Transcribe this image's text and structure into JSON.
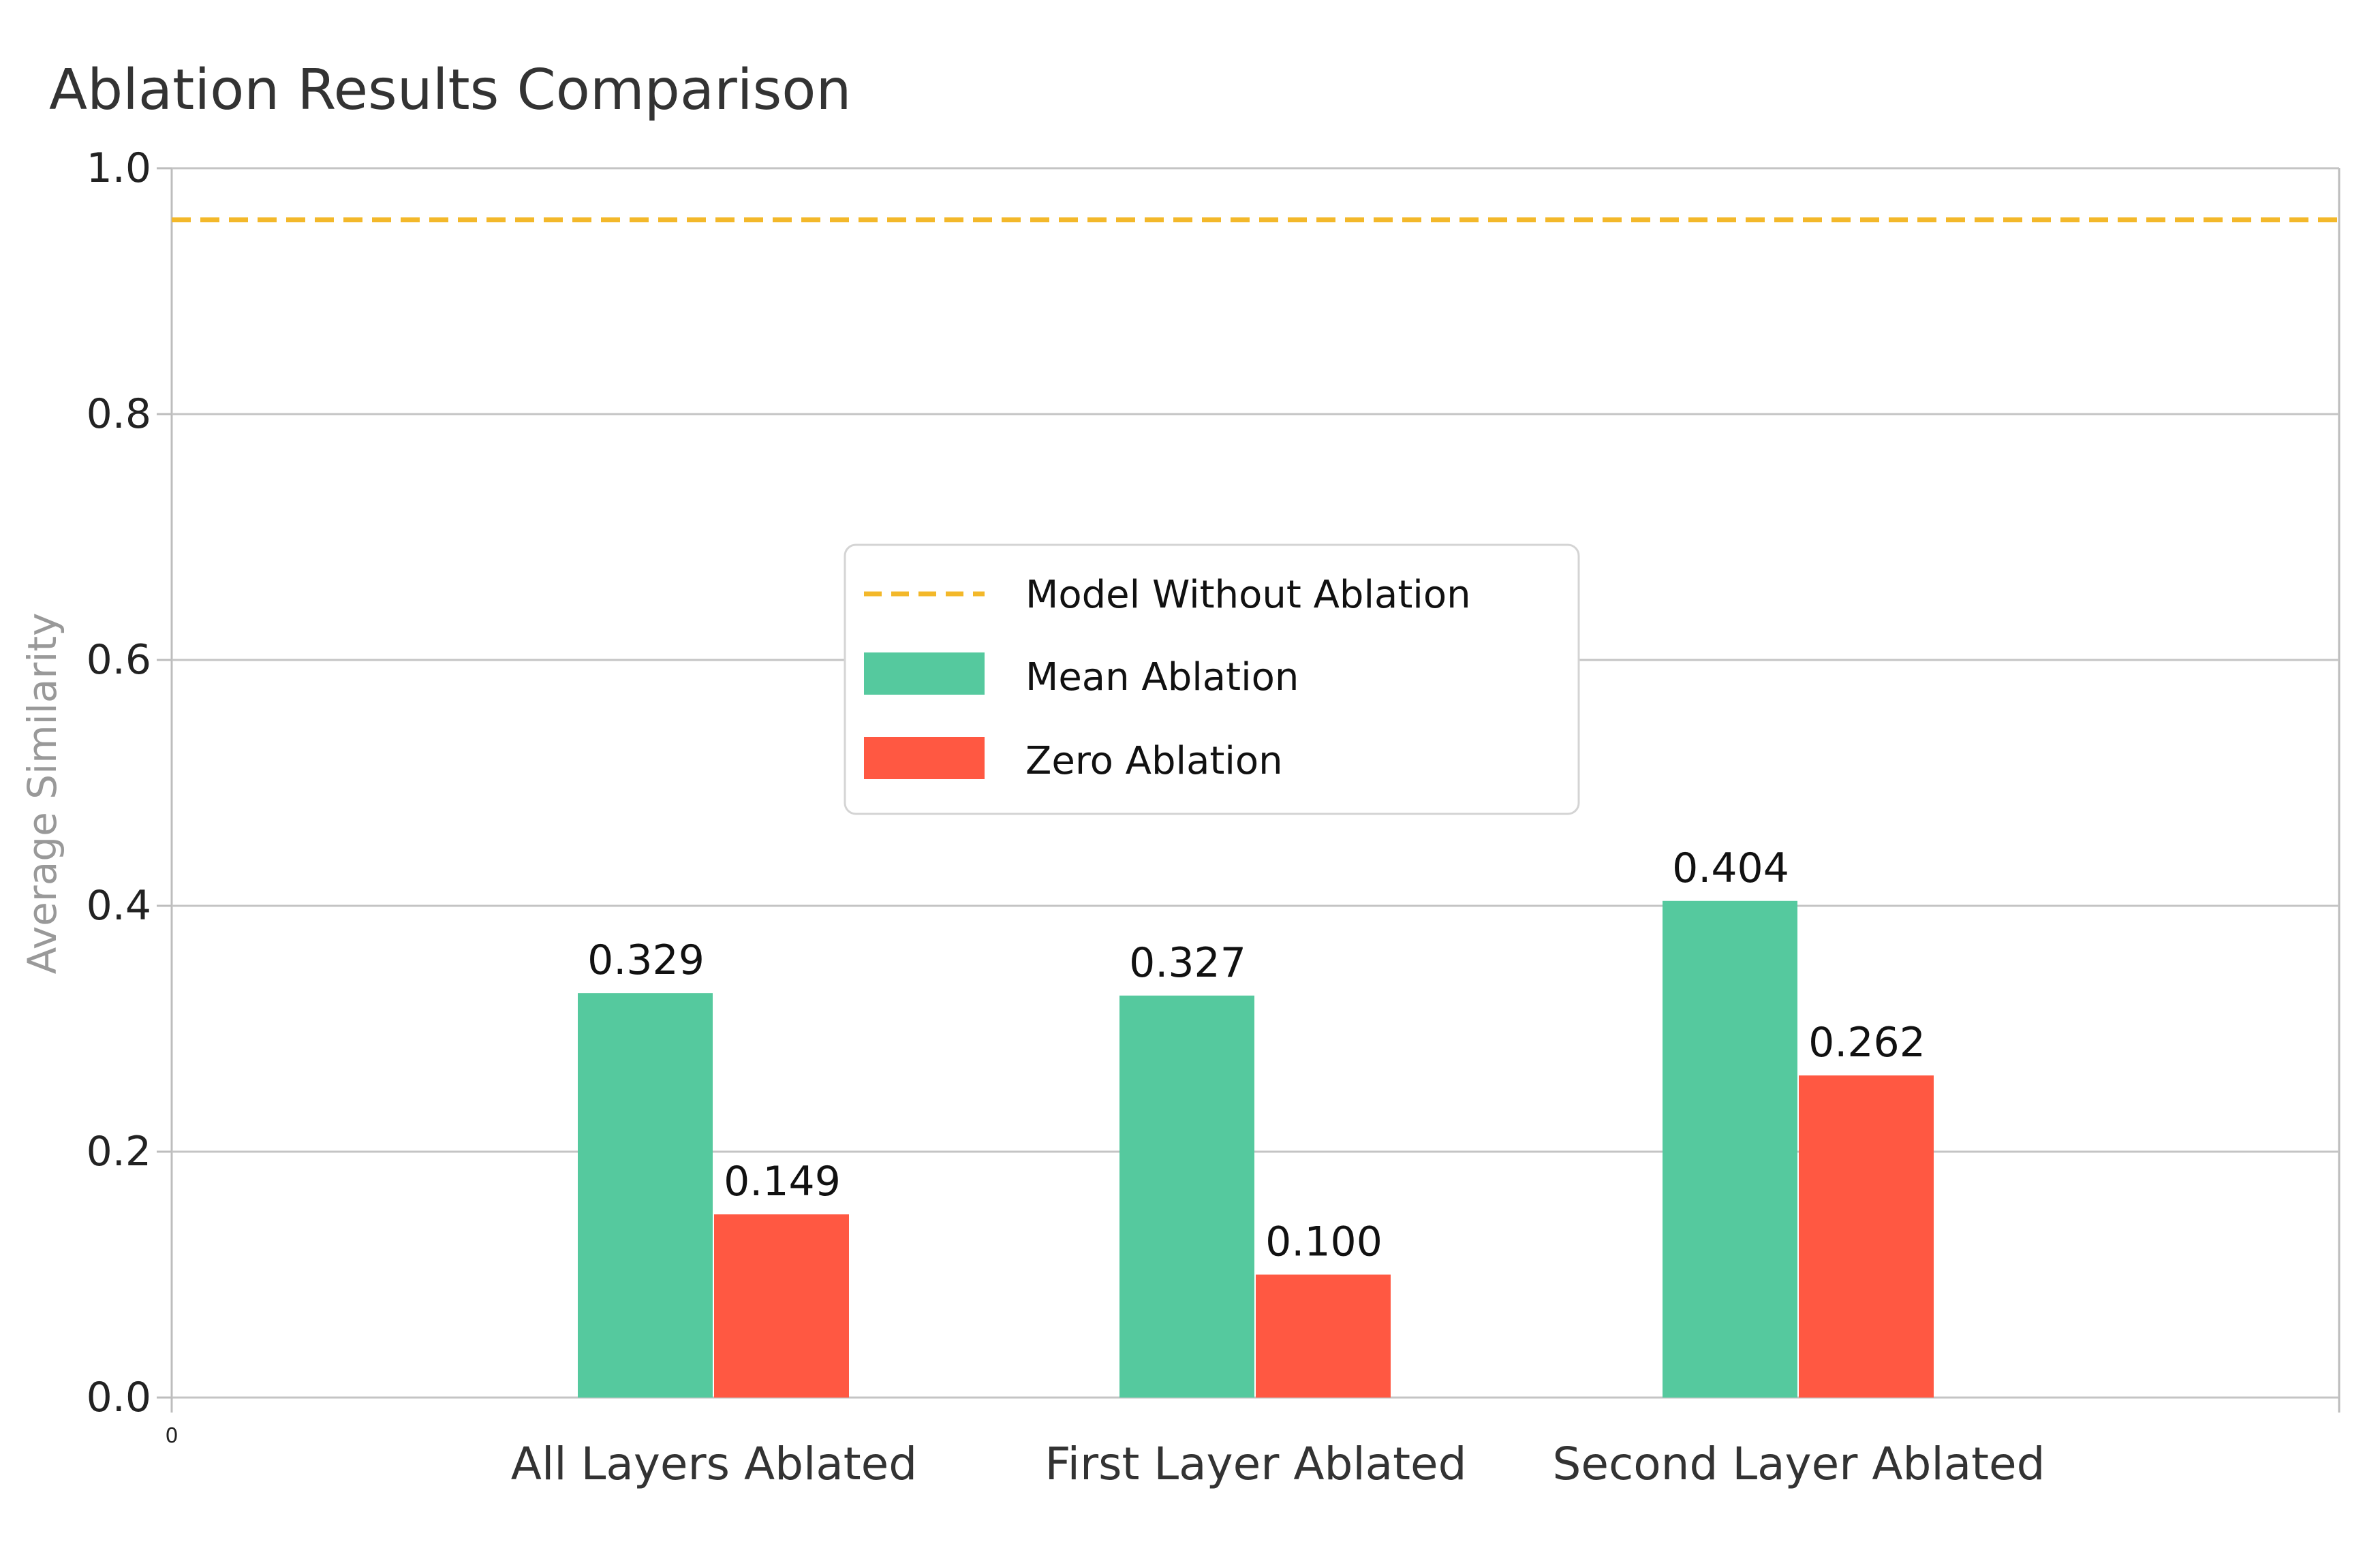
{
  "chart_data": {
    "type": "bar",
    "title": "Ablation Results Comparison",
    "xlabel": "",
    "ylabel": "Average Similarity",
    "ylim": [
      0,
      1.0
    ],
    "yticks": [
      "0.0",
      "0.2",
      "0.4",
      "0.6",
      "0.8",
      "1.0"
    ],
    "origin_label": "0",
    "categories": [
      "All Layers Ablated",
      "First Layer Ablated",
      "Second Layer Ablated"
    ],
    "series": [
      {
        "name": "Mean Ablation",
        "values": [
          0.329,
          0.327,
          0.404
        ],
        "labels": [
          "0.329",
          "0.327",
          "0.404"
        ],
        "color": "#55C99E"
      },
      {
        "name": "Zero Ablation",
        "values": [
          0.149,
          0.1,
          0.262
        ],
        "labels": [
          "0.149",
          "0.100",
          "0.262"
        ],
        "color": "#FF5842"
      }
    ],
    "reference_line": {
      "name": "Model Without Ablation",
      "value": 0.958,
      "color": "#F3B82A",
      "style": "dashed"
    },
    "legend_position": "center",
    "grid": true
  }
}
